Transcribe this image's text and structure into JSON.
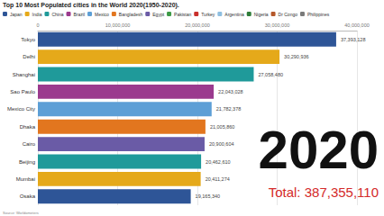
{
  "chart_data": {
    "type": "bar",
    "orientation": "horizontal",
    "stacked": true,
    "title": "Top 10 Most Populated cities in the World 2020(1950-2020).",
    "categories": [
      "Tokyo",
      "Delhi",
      "Shanghai",
      "Sao Paulo",
      "Mexico City",
      "Dhaka",
      "Cairo",
      "Beijing",
      "Mumbai",
      "Osaka"
    ],
    "series": [
      {
        "name": "Japan",
        "color": "#2e5597",
        "values": [
          37393128,
          null,
          null,
          null,
          null,
          null,
          null,
          null,
          null,
          19165340
        ],
        "value_labels": [
          "37,393,128",
          null,
          null,
          null,
          null,
          null,
          null,
          null,
          null,
          "19,165,340"
        ]
      },
      {
        "name": "India",
        "color": "#e5a91a",
        "values": [
          null,
          30290936,
          null,
          null,
          null,
          null,
          null,
          null,
          20411274,
          null
        ],
        "value_labels": [
          null,
          "30,290,936",
          null,
          null,
          null,
          null,
          null,
          null,
          "20,411,274",
          null
        ]
      },
      {
        "name": "China",
        "color": "#1f9a9a",
        "values": [
          null,
          null,
          27058480,
          null,
          null,
          null,
          null,
          20462610,
          null,
          null
        ],
        "value_labels": [
          null,
          null,
          "27,058,480",
          null,
          null,
          null,
          null,
          "20,462,610",
          null,
          null
        ]
      },
      {
        "name": "Brazil",
        "color": "#9b3a8e",
        "values": [
          null,
          null,
          null,
          22043028,
          null,
          null,
          null,
          null,
          null,
          null
        ],
        "value_labels": [
          null,
          null,
          null,
          "22,043,028",
          null,
          null,
          null,
          null,
          null,
          null
        ]
      },
      {
        "name": "Mexico",
        "color": "#5d9fd6",
        "values": [
          null,
          null,
          null,
          null,
          21782378,
          null,
          null,
          null,
          null,
          null
        ],
        "value_labels": [
          null,
          null,
          null,
          null,
          "21,782,378",
          null,
          null,
          null,
          null,
          null
        ]
      },
      {
        "name": "Bangladesh",
        "color": "#e2761f",
        "values": [
          null,
          null,
          null,
          null,
          null,
          21005860,
          null,
          null,
          null,
          null
        ],
        "value_labels": [
          null,
          null,
          null,
          null,
          null,
          "21,005,860",
          null,
          null,
          null,
          null
        ]
      },
      {
        "name": "Egypt",
        "color": "#6a5ba6",
        "values": [
          null,
          null,
          null,
          null,
          null,
          null,
          20900604,
          null,
          null,
          null
        ],
        "value_labels": [
          null,
          null,
          null,
          null,
          null,
          null,
          "20,900,604",
          null,
          null,
          null
        ]
      },
      {
        "name": "Pakistan",
        "color": "#3d9a47",
        "values": [
          null,
          null,
          null,
          null,
          null,
          null,
          null,
          null,
          null,
          null
        ],
        "value_labels": [
          null,
          null,
          null,
          null,
          null,
          null,
          null,
          null,
          null,
          null
        ]
      },
      {
        "name": "Turkey",
        "color": "#c9302c",
        "values": [
          null,
          null,
          null,
          null,
          null,
          null,
          null,
          null,
          null,
          null
        ],
        "value_labels": [
          null,
          null,
          null,
          null,
          null,
          null,
          null,
          null,
          null,
          null
        ]
      },
      {
        "name": "Argentina",
        "color": "#8fbfe0",
        "values": [
          null,
          null,
          null,
          null,
          null,
          null,
          null,
          null,
          null,
          null
        ],
        "value_labels": [
          null,
          null,
          null,
          null,
          null,
          null,
          null,
          null,
          null,
          null
        ]
      },
      {
        "name": "Nigeria",
        "color": "#2f7d3a",
        "values": [
          null,
          null,
          null,
          null,
          null,
          null,
          null,
          null,
          null,
          null
        ],
        "value_labels": [
          null,
          null,
          null,
          null,
          null,
          null,
          null,
          null,
          null,
          null
        ]
      },
      {
        "name": "Dr Congo",
        "color": "#b5582a",
        "values": [
          null,
          null,
          null,
          null,
          null,
          null,
          null,
          null,
          null,
          null
        ],
        "value_labels": [
          null,
          null,
          null,
          null,
          null,
          null,
          null,
          null,
          null,
          null
        ]
      },
      {
        "name": "Philippines",
        "color": "#7a7a7a",
        "values": [
          null,
          null,
          null,
          null,
          null,
          null,
          null,
          null,
          null,
          null
        ],
        "value_labels": [
          null,
          null,
          null,
          null,
          null,
          null,
          null,
          null,
          null,
          null
        ]
      }
    ],
    "xlim": [
      0,
      40000000
    ],
    "xticks": [
      0,
      {
        "value": 10000000,
        "label": "10,000,000"
      },
      {
        "value": 20000000,
        "label": "20,000,000"
      },
      {
        "value": 30000000,
        "label": "30,000,000"
      },
      {
        "value": 40000000,
        "label": "40,000,000"
      }
    ],
    "grid": true,
    "data_labels": true,
    "legend": "top-left",
    "annotations": [
      "2020",
      "Total: 387,355,110",
      "Source: Worldometers"
    ]
  }
}
